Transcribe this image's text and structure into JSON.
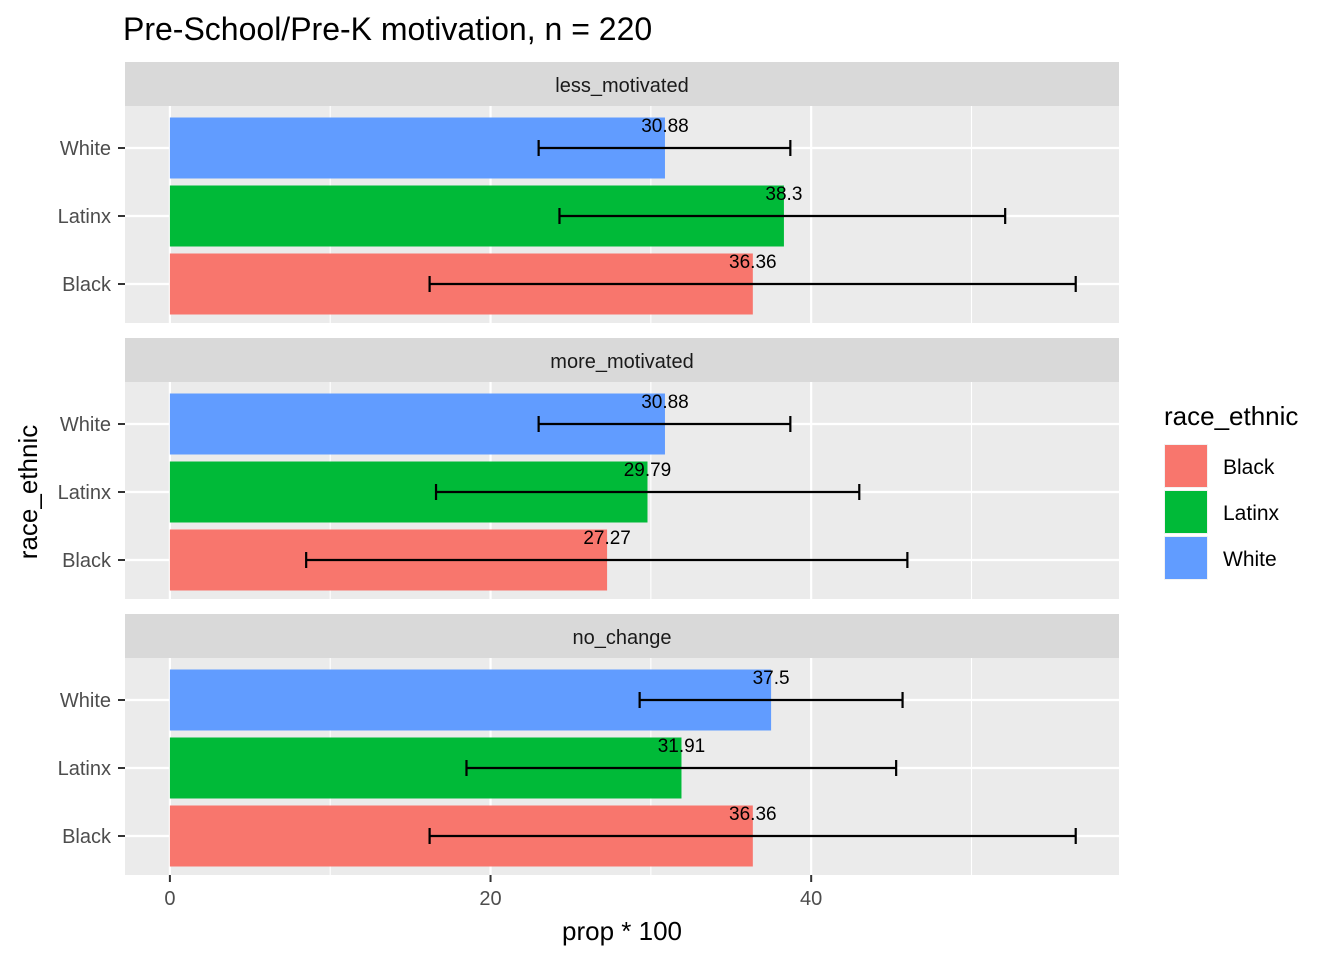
{
  "chart_data": {
    "type": "bar",
    "orientation": "horizontal",
    "title": "Pre-School/Pre-K motivation, n = 220",
    "xlabel": "prop * 100",
    "ylabel": "race_ethnic",
    "xlim": [
      -2.8,
      59.2
    ],
    "xticks": [
      "0",
      "20",
      "40"
    ],
    "tick_values": [
      0,
      20,
      40
    ],
    "minor_values": [
      10,
      30,
      50
    ],
    "grid": true,
    "categories": [
      "White",
      "Latinx",
      "Black"
    ],
    "legend": {
      "title": "race_ethnic",
      "position": "right",
      "entries": [
        {
          "label": "Black",
          "color": "#F8766D"
        },
        {
          "label": "Latinx",
          "color": "#00BA38"
        },
        {
          "label": "White",
          "color": "#619CFF"
        }
      ]
    },
    "colors": {
      "White": "#619CFF",
      "Latinx": "#00BA38",
      "Black": "#F8766D"
    },
    "panels": [
      {
        "name": "less_motivated",
        "bars": [
          {
            "category": "White",
            "value": 30.88,
            "label": "30.88",
            "err_low": 23.0,
            "err_high": 38.7
          },
          {
            "category": "Latinx",
            "value": 38.3,
            "label": "38.3",
            "err_low": 24.3,
            "err_high": 52.1
          },
          {
            "category": "Black",
            "value": 36.36,
            "label": "36.36",
            "err_low": 16.2,
            "err_high": 56.5
          }
        ]
      },
      {
        "name": "more_motivated",
        "bars": [
          {
            "category": "White",
            "value": 30.88,
            "label": "30.88",
            "err_low": 23.0,
            "err_high": 38.7
          },
          {
            "category": "Latinx",
            "value": 29.79,
            "label": "29.79",
            "err_low": 16.6,
            "err_high": 43.0
          },
          {
            "category": "Black",
            "value": 27.27,
            "label": "27.27",
            "err_low": 8.5,
            "err_high": 46.0
          }
        ]
      },
      {
        "name": "no_change",
        "bars": [
          {
            "category": "White",
            "value": 37.5,
            "label": "37.5",
            "err_low": 29.3,
            "err_high": 45.7
          },
          {
            "category": "Latinx",
            "value": 31.91,
            "label": "31.91",
            "err_low": 18.5,
            "err_high": 45.3
          },
          {
            "category": "Black",
            "value": 36.36,
            "label": "36.36",
            "err_low": 16.2,
            "err_high": 56.5
          }
        ]
      }
    ]
  }
}
